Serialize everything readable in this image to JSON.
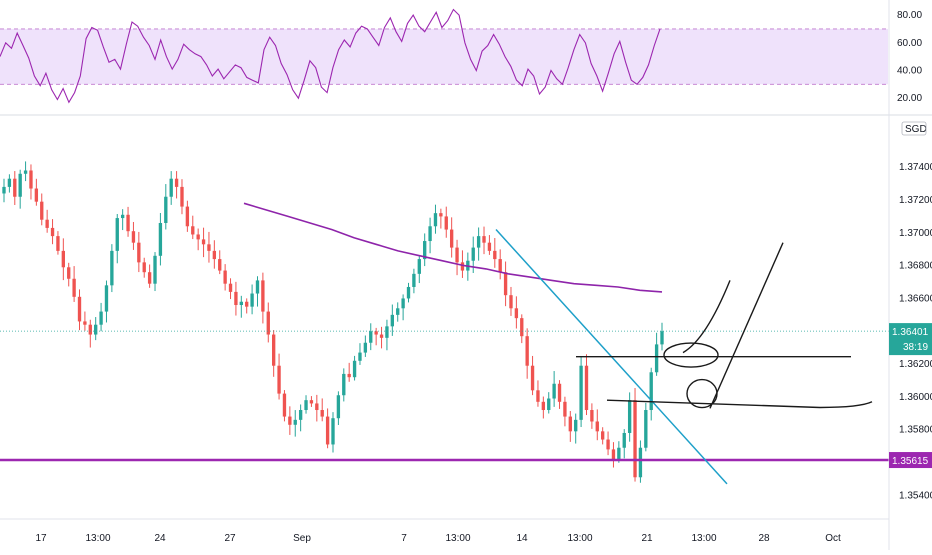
{
  "chart_data": [
    {
      "type": "line",
      "panel": "rsi",
      "y_ticks": [
        "80.00",
        "60.00",
        "40.00",
        "20.00"
      ],
      "ylim": [
        10,
        88
      ],
      "band": [
        30,
        70
      ],
      "grid": false,
      "colors": {
        "line": "#9c27b0",
        "band": "#efe2fb",
        "band_border": "#9c27b0"
      },
      "series": [
        {
          "values": [
            50,
            60,
            56,
            67,
            58,
            49,
            36,
            29,
            38,
            26,
            19,
            27,
            17,
            24,
            36,
            63,
            71,
            69,
            57,
            46,
            48,
            41,
            59,
            75,
            72,
            64,
            58,
            48,
            62,
            50,
            41,
            48,
            59,
            55,
            52,
            50,
            44,
            36,
            41,
            34,
            39,
            44,
            42,
            35,
            33,
            31,
            55,
            64,
            58,
            45,
            37,
            26,
            20,
            33,
            47,
            42,
            28,
            24,
            42,
            55,
            62,
            57,
            67,
            72,
            70,
            64,
            58,
            71,
            78,
            68,
            61,
            74,
            80,
            72,
            68,
            75,
            82,
            71,
            76,
            84,
            80,
            60,
            48,
            40,
            54,
            58,
            66,
            59,
            50,
            43,
            33,
            29,
            41,
            36,
            23,
            28,
            40,
            34,
            30,
            42,
            55,
            66,
            60,
            45,
            36,
            25,
            38,
            52,
            61,
            46,
            33,
            30,
            35,
            44,
            58,
            70
          ]
        }
      ]
    },
    {
      "type": "candlestick",
      "panel": "price",
      "currency": "SGD",
      "y_ticks": [
        "1.37400",
        "1.37200",
        "1.37000",
        "1.36800",
        "1.36600",
        "1.36200",
        "1.36000",
        "1.35800",
        "1.35400"
      ],
      "ylim": [
        1.3528,
        1.377
      ],
      "x_ticks": [
        "17",
        "13:00",
        "24",
        "27",
        "Sep",
        "7",
        "13:00",
        "14",
        "13:00",
        "21",
        "13:00",
        "28",
        "Oct"
      ],
      "colors": {
        "up": "#26a69a",
        "down": "#ef5350",
        "ma": "#8e24aa",
        "support": "#9c27b0",
        "trendline": "#1ea0c9",
        "drawing": "#1a1a1a"
      },
      "support_level": 1.35615,
      "support_label": "1.35615",
      "last_price": 1.36401,
      "last_price_label": "1.36401",
      "countdown_label": "38:19",
      "closes": [
        1.3728,
        1.3733,
        1.3722,
        1.3736,
        1.3738,
        1.3727,
        1.3719,
        1.3708,
        1.3703,
        1.3698,
        1.3689,
        1.3679,
        1.3672,
        1.3661,
        1.3646,
        1.3644,
        1.3638,
        1.3644,
        1.3652,
        1.3668,
        1.3689,
        1.3709,
        1.3711,
        1.3701,
        1.3694,
        1.3682,
        1.3676,
        1.3669,
        1.3686,
        1.3706,
        1.3722,
        1.3733,
        1.3728,
        1.3716,
        1.3704,
        1.3699,
        1.3696,
        1.3693,
        1.3689,
        1.3684,
        1.3677,
        1.3669,
        1.3664,
        1.3656,
        1.3658,
        1.3655,
        1.3663,
        1.3671,
        1.3652,
        1.3638,
        1.3619,
        1.3602,
        1.3588,
        1.3583,
        1.3586,
        1.3592,
        1.3598,
        1.3596,
        1.3592,
        1.3588,
        1.3571,
        1.3587,
        1.3601,
        1.3614,
        1.3612,
        1.3622,
        1.3627,
        1.3633,
        1.364,
        1.3638,
        1.3636,
        1.3643,
        1.365,
        1.3654,
        1.366,
        1.3667,
        1.3675,
        1.3684,
        1.3695,
        1.3704,
        1.3712,
        1.371,
        1.3702,
        1.3691,
        1.3682,
        1.3677,
        1.3683,
        1.3691,
        1.3698,
        1.3694,
        1.3689,
        1.3684,
        1.3676,
        1.3662,
        1.3654,
        1.3648,
        1.3637,
        1.3619,
        1.3604,
        1.3597,
        1.3592,
        1.3599,
        1.3608,
        1.3597,
        1.3588,
        1.3579,
        1.3586,
        1.3619,
        1.3592,
        1.3585,
        1.3579,
        1.3574,
        1.3568,
        1.3562,
        1.3569,
        1.3578,
        1.3598,
        1.3551,
        1.3569,
        1.3592,
        1.3615,
        1.3632,
        1.364
      ],
      "ma_values": [
        1.3718,
        1.3714,
        1.371,
        1.3706,
        1.3702,
        1.3697,
        1.3693,
        1.3689,
        1.3686,
        1.3683,
        1.368,
        1.3678,
        1.3675,
        1.3673,
        1.3671,
        1.3669,
        1.3668,
        1.3667,
        1.3665,
        1.3664
      ]
    }
  ]
}
